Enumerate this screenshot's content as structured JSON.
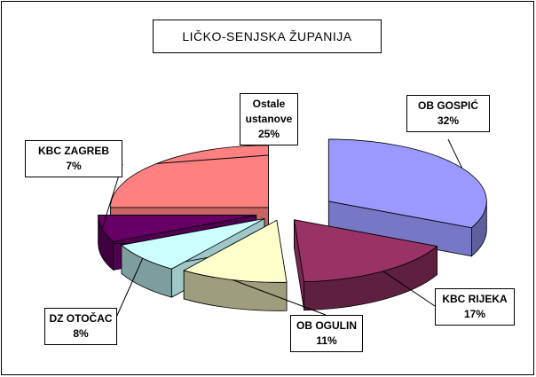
{
  "chart_data": {
    "type": "pie3d",
    "title": "LIČKO-SENJSKA ŽUPANIJA",
    "categories": [
      "OB GOSPIĆ",
      "KBC RIJEKA",
      "OB OGULIN",
      "DZ OTOČAC",
      "KBC ZAGREB",
      "Ostale ustanove"
    ],
    "values": [
      32,
      17,
      11,
      8,
      7,
      25
    ],
    "value_labels": [
      "32%",
      "17%",
      "11%",
      "8%",
      "7%",
      "25%"
    ],
    "colors": [
      "#9999ff",
      "#993366",
      "#ffffcc",
      "#ccffff",
      "#660066",
      "#ff8080"
    ]
  }
}
